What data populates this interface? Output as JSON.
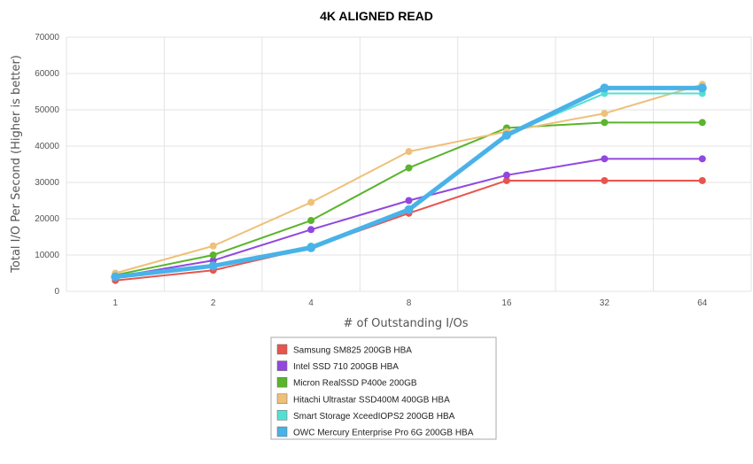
{
  "chart_data": {
    "type": "line",
    "title": "4K ALIGNED READ",
    "xlabel": "# of Outstanding I/Os",
    "ylabel": "Total I/O Per Second (Higher is better)",
    "categories": [
      "1",
      "2",
      "4",
      "8",
      "16",
      "32",
      "64"
    ],
    "ylim": [
      0,
      70000
    ],
    "yticks": [
      0,
      10000,
      20000,
      30000,
      40000,
      50000,
      60000,
      70000
    ],
    "grid": true,
    "legend_position": "bottom-center",
    "series": [
      {
        "name": "Samsung SM825 200GB HBA",
        "color": "#e8544e",
        "values": [
          3000,
          5800,
          12000,
          21500,
          30500,
          30500,
          30500
        ]
      },
      {
        "name": "Intel SSD 710 200GB HBA",
        "color": "#9147e0",
        "values": [
          4000,
          8500,
          17000,
          25000,
          32000,
          36500,
          36500
        ]
      },
      {
        "name": "Micron RealSSD P400e 200GB",
        "color": "#5ab42c",
        "values": [
          4500,
          10000,
          19500,
          34000,
          45000,
          46500,
          46500
        ]
      },
      {
        "name": "Hitachi Ultrastar SSD400M 400GB HBA",
        "color": "#eec07a",
        "values": [
          5000,
          12500,
          24500,
          38500,
          44000,
          49000,
          57000
        ]
      },
      {
        "name": "Smart Storage XceedIOPS2 200GB HBA",
        "color": "#55dfd2",
        "values": [
          4000,
          7000,
          12500,
          22500,
          43000,
          54500,
          54500
        ]
      },
      {
        "name": "OWC Mercury Enterprise Pro 6G 200GB HBA",
        "color": "#49b2e8",
        "values": [
          4000,
          7000,
          12000,
          22500,
          43000,
          56000,
          56000
        ]
      }
    ]
  }
}
